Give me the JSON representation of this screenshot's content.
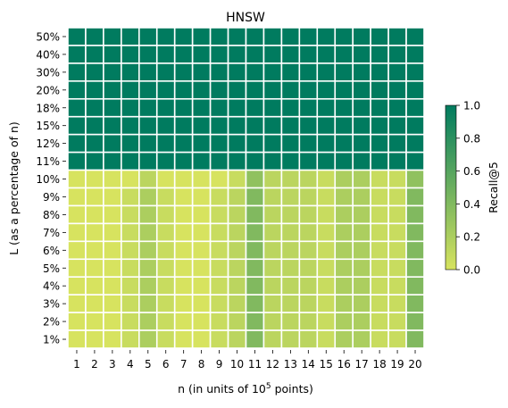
{
  "chart_data": {
    "type": "heatmap",
    "title": "HNSW",
    "xlabel_prefix": "n (in units of 10",
    "xlabel_exponent": "5",
    "xlabel_suffix": " points)",
    "ylabel": "L (as a percentage of n)",
    "x_categories": [
      "1",
      "2",
      "3",
      "4",
      "5",
      "6",
      "7",
      "8",
      "9",
      "10",
      "11",
      "12",
      "13",
      "14",
      "15",
      "16",
      "17",
      "18",
      "19",
      "20"
    ],
    "y_categories": [
      "50%",
      "40%",
      "30%",
      "20%",
      "18%",
      "15%",
      "12%",
      "11%",
      "10%",
      "9%",
      "8%",
      "7%",
      "6%",
      "5%",
      "4%",
      "3%",
      "2%",
      "1%"
    ],
    "values": [
      [
        1,
        1,
        1,
        1,
        1,
        1,
        1,
        1,
        1,
        1,
        1,
        1,
        1,
        1,
        1,
        1,
        1,
        1,
        1,
        1
      ],
      [
        1,
        1,
        1,
        1,
        1,
        1,
        1,
        1,
        1,
        1,
        1,
        1,
        1,
        1,
        1,
        1,
        1,
        1,
        1,
        1
      ],
      [
        1,
        1,
        1,
        1,
        1,
        1,
        1,
        1,
        1,
        1,
        1,
        1,
        1,
        1,
        1,
        1,
        1,
        1,
        1,
        1
      ],
      [
        1,
        1,
        1,
        1,
        1,
        1,
        1,
        1,
        1,
        1,
        1,
        1,
        1,
        1,
        1,
        1,
        1,
        1,
        1,
        1
      ],
      [
        1,
        1,
        1,
        1,
        1,
        1,
        1,
        1,
        1,
        1,
        1,
        1,
        1,
        1,
        1,
        1,
        1,
        1,
        1,
        1
      ],
      [
        1,
        1,
        1,
        1,
        1,
        1,
        1,
        1,
        1,
        1,
        1,
        1,
        1,
        1,
        1,
        1,
        1,
        1,
        1,
        1
      ],
      [
        1,
        1,
        1,
        1,
        1,
        1,
        1,
        1,
        1,
        1,
        1,
        1,
        1,
        1,
        1,
        1,
        1,
        1,
        1,
        1
      ],
      [
        1,
        1,
        1,
        1,
        1,
        1,
        1,
        1,
        1,
        1,
        1,
        1,
        1,
        1,
        1,
        1,
        1,
        1,
        1,
        1
      ],
      [
        0.0,
        0.0,
        0.0,
        0.0,
        0.13,
        0.0,
        0.0,
        0.0,
        0.0,
        0.07,
        0.33,
        0.13,
        0.13,
        0.13,
        0.07,
        0.2,
        0.2,
        0.07,
        0.07,
        0.33
      ],
      [
        0.0,
        0.0,
        0.0,
        0.07,
        0.2,
        0.07,
        0.0,
        0.0,
        0.07,
        0.13,
        0.4,
        0.13,
        0.13,
        0.13,
        0.07,
        0.2,
        0.2,
        0.07,
        0.07,
        0.4
      ],
      [
        0.0,
        0.0,
        0.0,
        0.07,
        0.2,
        0.07,
        0.0,
        0.0,
        0.07,
        0.13,
        0.4,
        0.13,
        0.13,
        0.13,
        0.07,
        0.2,
        0.2,
        0.07,
        0.07,
        0.4
      ],
      [
        0.0,
        0.0,
        0.0,
        0.07,
        0.2,
        0.07,
        0.0,
        0.0,
        0.07,
        0.13,
        0.4,
        0.13,
        0.13,
        0.13,
        0.07,
        0.2,
        0.2,
        0.07,
        0.07,
        0.4
      ],
      [
        0.0,
        0.0,
        0.0,
        0.07,
        0.2,
        0.07,
        0.0,
        0.0,
        0.07,
        0.13,
        0.4,
        0.13,
        0.13,
        0.13,
        0.07,
        0.2,
        0.2,
        0.07,
        0.07,
        0.4
      ],
      [
        0.0,
        0.0,
        0.0,
        0.07,
        0.2,
        0.07,
        0.0,
        0.0,
        0.07,
        0.13,
        0.4,
        0.13,
        0.13,
        0.13,
        0.07,
        0.2,
        0.2,
        0.07,
        0.07,
        0.4
      ],
      [
        0.0,
        0.0,
        0.0,
        0.07,
        0.2,
        0.07,
        0.0,
        0.0,
        0.07,
        0.13,
        0.4,
        0.13,
        0.13,
        0.13,
        0.07,
        0.2,
        0.2,
        0.07,
        0.07,
        0.4
      ],
      [
        0.0,
        0.0,
        0.0,
        0.07,
        0.2,
        0.07,
        0.0,
        0.0,
        0.07,
        0.13,
        0.4,
        0.13,
        0.13,
        0.13,
        0.07,
        0.2,
        0.2,
        0.07,
        0.07,
        0.4
      ],
      [
        0.0,
        0.0,
        0.0,
        0.07,
        0.2,
        0.07,
        0.0,
        0.0,
        0.07,
        0.13,
        0.4,
        0.13,
        0.13,
        0.13,
        0.07,
        0.2,
        0.2,
        0.07,
        0.07,
        0.4
      ],
      [
        0.0,
        0.0,
        0.0,
        0.07,
        0.2,
        0.07,
        0.0,
        0.0,
        0.07,
        0.13,
        0.4,
        0.13,
        0.13,
        0.13,
        0.07,
        0.2,
        0.2,
        0.07,
        0.07,
        0.4
      ]
    ],
    "colorbar": {
      "label": "Recall@5",
      "range": [
        0.0,
        1.0
      ],
      "ticks": [
        "0.0",
        "0.2",
        "0.4",
        "0.6",
        "0.8",
        "1.0"
      ],
      "colors": [
        "#d7e35f",
        "#007b5f"
      ]
    },
    "grid": true,
    "cell_border_color": "#ffffff"
  }
}
